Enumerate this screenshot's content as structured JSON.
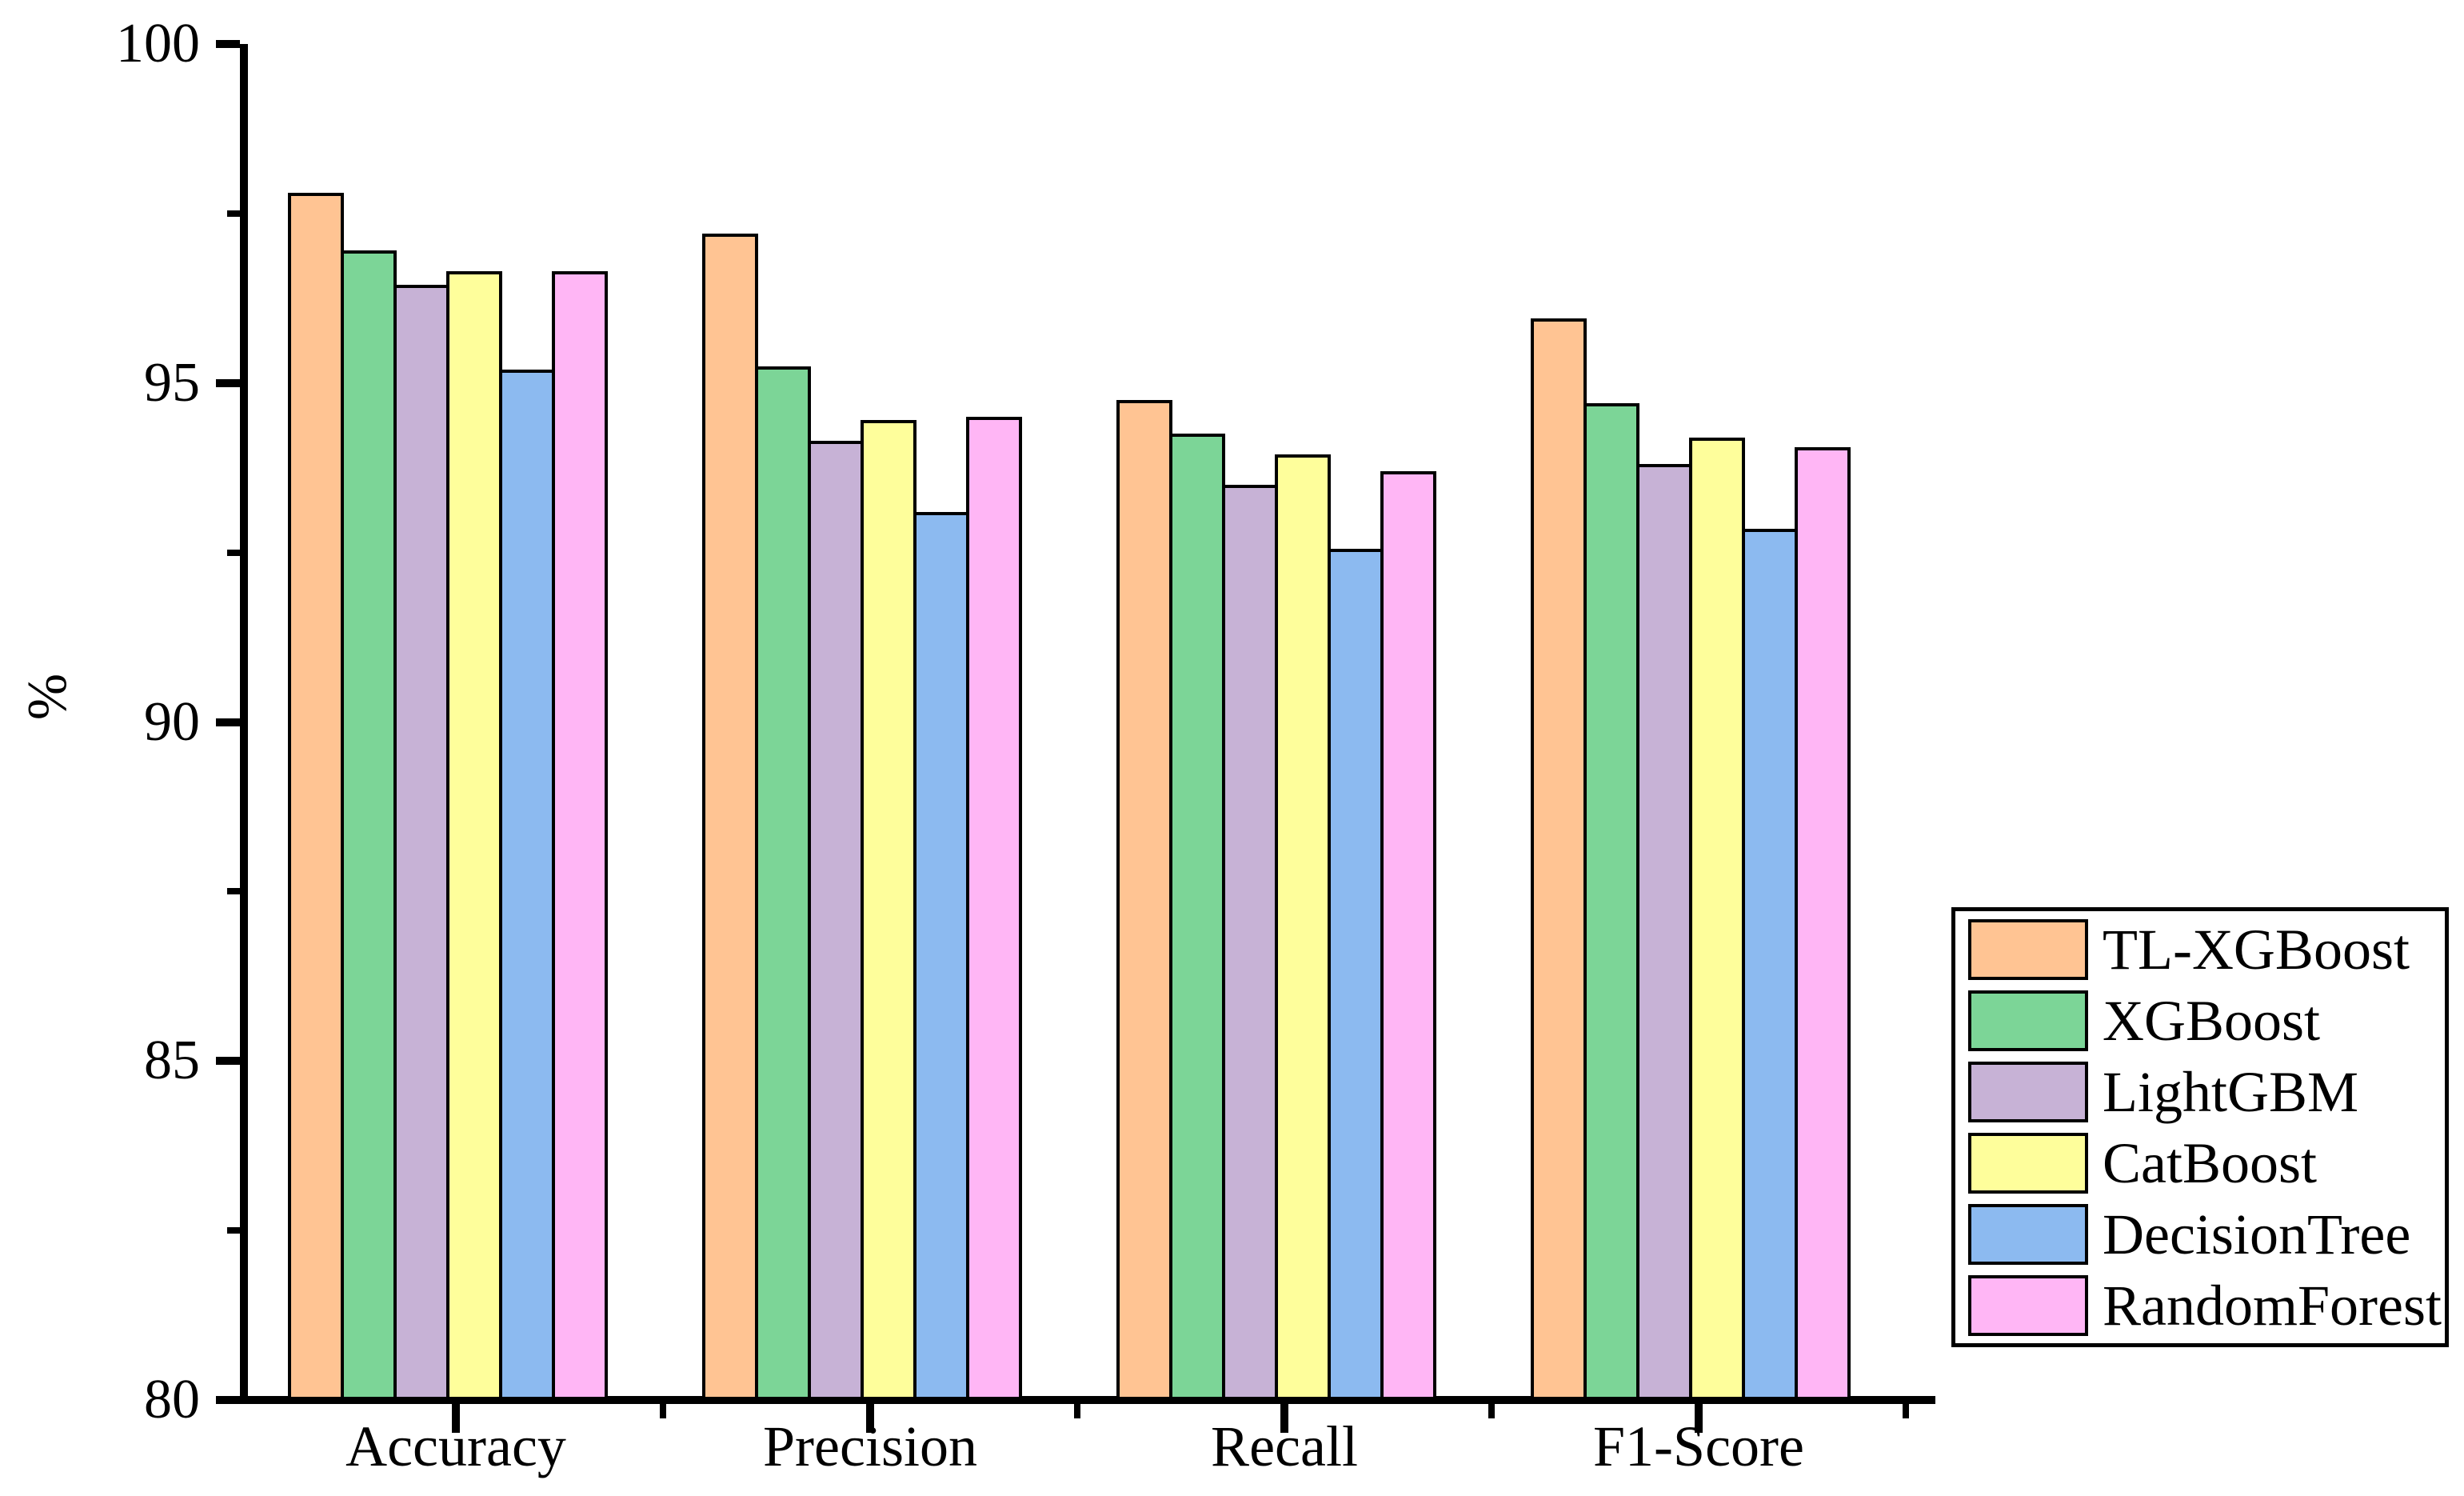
{
  "figure": {
    "background": "#ffffff",
    "axis_color": "#000000",
    "text_color": "#000000"
  },
  "chart_data": {
    "type": "bar",
    "title": "",
    "xlabel": "",
    "ylabel": "%",
    "ylim": [
      80,
      100
    ],
    "yticks_major": [
      100,
      95,
      90,
      85,
      80
    ],
    "yticks_minor": [
      97.5,
      92.5,
      87.5,
      82.5
    ],
    "grid": false,
    "legend_position": "right",
    "bar_border_color": "#000000",
    "categories": [
      "Accuracy",
      "Precision",
      "Recall",
      "F1-Score"
    ],
    "series": [
      {
        "name": "TL-XGBoost",
        "color": "#FFC493",
        "values": [
          97.8,
          97.2,
          94.75,
          95.95
        ]
      },
      {
        "name": "XGBoost",
        "color": "#7CD597",
        "values": [
          96.95,
          95.25,
          94.25,
          94.7
        ]
      },
      {
        "name": "LightGBM",
        "color": "#C7B2D6",
        "values": [
          96.45,
          94.15,
          93.5,
          93.8
        ]
      },
      {
        "name": "CatBoost",
        "color": "#FEFE9B",
        "values": [
          96.65,
          94.45,
          93.95,
          94.2
        ]
      },
      {
        "name": "DecisionTree",
        "color": "#8CBAF0",
        "values": [
          95.2,
          93.1,
          92.55,
          92.85
        ]
      },
      {
        "name": "RandomForest",
        "color": "#FFB6F5",
        "values": [
          96.65,
          94.5,
          93.7,
          94.05
        ]
      }
    ]
  }
}
